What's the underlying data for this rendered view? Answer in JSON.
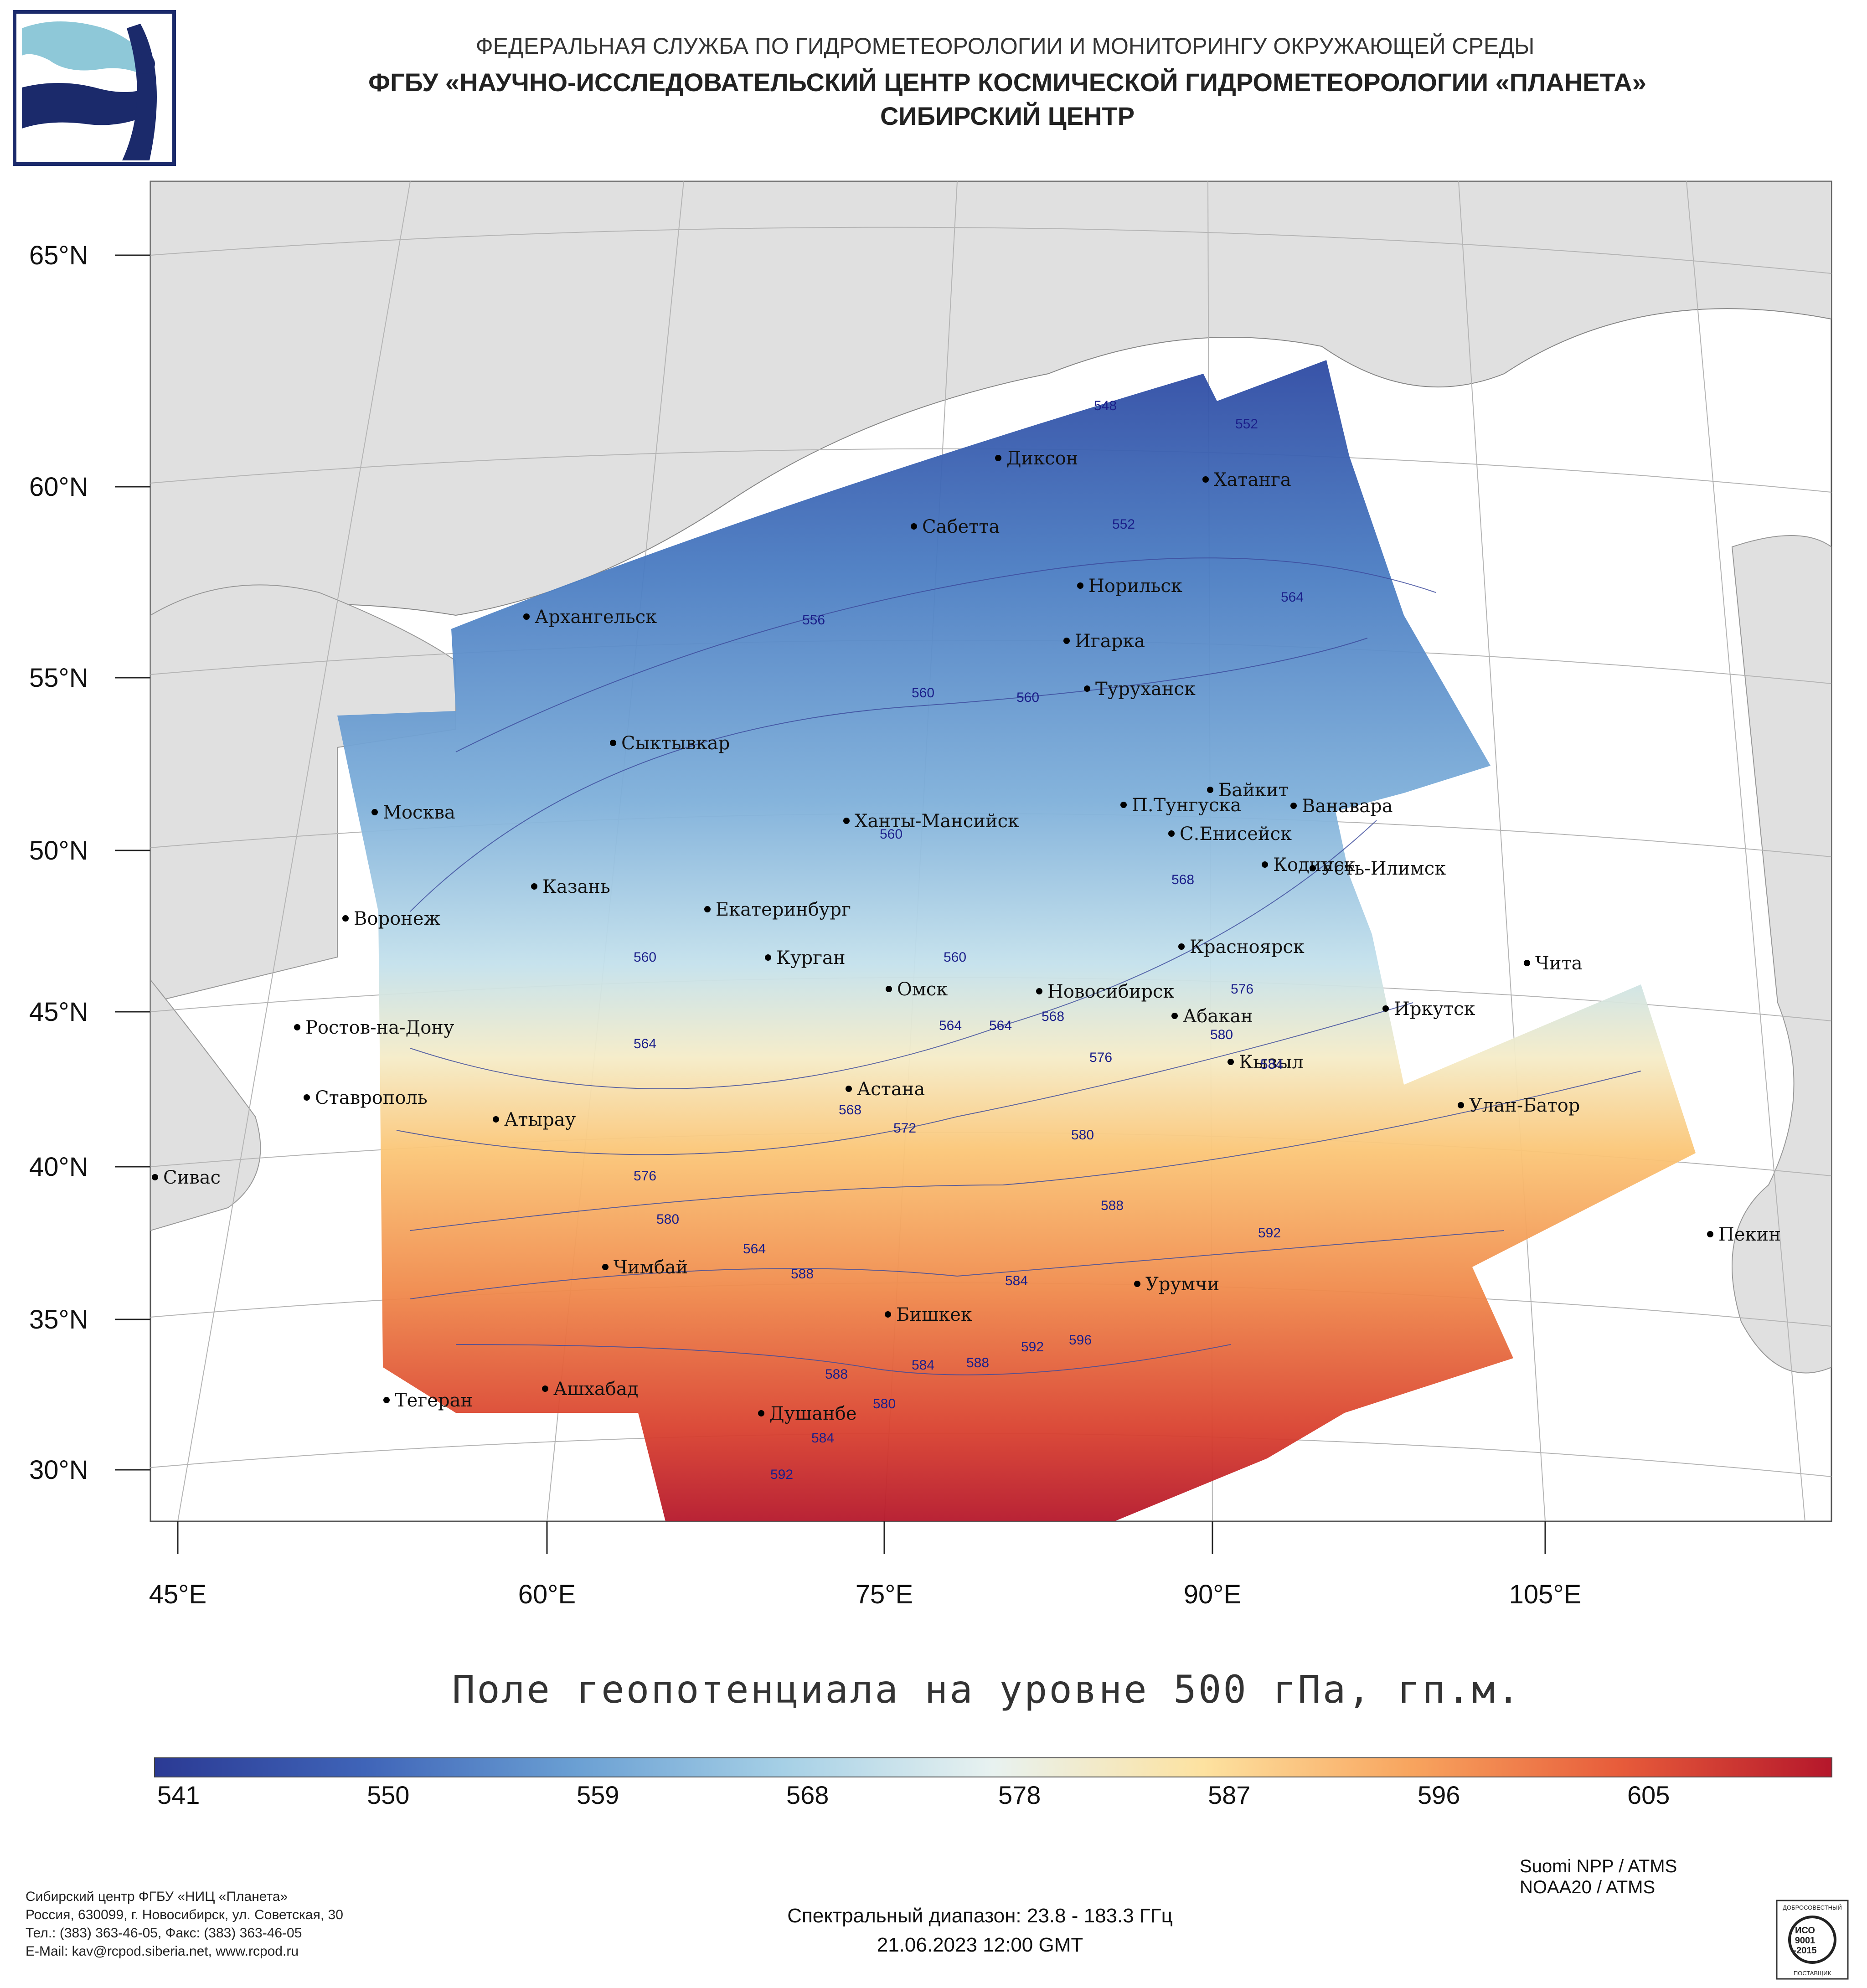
{
  "header": {
    "line1": "ФЕДЕРАЛЬНАЯ СЛУЖБА ПО ГИДРОМЕТЕОРОЛОГИИ И МОНИТОРИНГУ ОКРУЖАЮЩЕЙ СРЕДЫ",
    "line2": "ФГБУ «НАУЧНО-ИССЛЕДОВАТЕЛЬСКИЙ ЦЕНТР КОСМИЧЕСКОЙ ГИДРОМЕТЕОРОЛОГИИ «ПЛАНЕТА»",
    "line3": "СИБИРСКИЙ ЦЕНТР"
  },
  "map": {
    "lat_labels": [
      "65°N",
      "60°N",
      "55°N",
      "50°N",
      "45°N",
      "40°N",
      "35°N",
      "30°N"
    ],
    "lon_labels": [
      "45°E",
      "60°E",
      "75°E",
      "90°E",
      "105°E"
    ],
    "cities": [
      {
        "name": "Диксон"
      },
      {
        "name": "Хатанга"
      },
      {
        "name": "Сабетта"
      },
      {
        "name": "Норильск"
      },
      {
        "name": "Архангельск"
      },
      {
        "name": "Игарка"
      },
      {
        "name": "Туруханск"
      },
      {
        "name": "Сыктывкар"
      },
      {
        "name": "Байкит"
      },
      {
        "name": "П.Тунгуска"
      },
      {
        "name": "Ванавара"
      },
      {
        "name": "Москва"
      },
      {
        "name": "Ханты-Мансийск"
      },
      {
        "name": "С.Енисейск"
      },
      {
        "name": "Кодинск"
      },
      {
        "name": "Усть-Илимск"
      },
      {
        "name": "Казань"
      },
      {
        "name": "Екатеринбург"
      },
      {
        "name": "Воронеж"
      },
      {
        "name": "Красноярск"
      },
      {
        "name": "Курган"
      },
      {
        "name": "Чита"
      },
      {
        "name": "Омск"
      },
      {
        "name": "Новосибирск"
      },
      {
        "name": "Иркутск"
      },
      {
        "name": "Абакан"
      },
      {
        "name": "Ростов-на-Дону"
      },
      {
        "name": "Кызыл"
      },
      {
        "name": "Астана"
      },
      {
        "name": "Ставрополь"
      },
      {
        "name": "Улан-Батор"
      },
      {
        "name": "Атырау"
      },
      {
        "name": "Сивас"
      },
      {
        "name": "Пекин"
      },
      {
        "name": "Чимбай"
      },
      {
        "name": "Урумчи"
      },
      {
        "name": "Бишкек"
      },
      {
        "name": "Тегеран"
      },
      {
        "name": "Ашхабад"
      },
      {
        "name": "Душанбе"
      }
    ],
    "isolines": [
      "548",
      "552",
      "552",
      "556",
      "560",
      "560",
      "564",
      "560",
      "568",
      "560",
      "560",
      "564",
      "564",
      "564",
      "568",
      "576",
      "576",
      "580",
      "568",
      "572",
      "580",
      "576",
      "580",
      "564",
      "588",
      "588",
      "592",
      "584",
      "584",
      "588",
      "592",
      "596",
      "588",
      "580",
      "584",
      "592",
      "584"
    ]
  },
  "map_title": "Поле геопотенциала на уровне 500 гПа, гп.м.",
  "colorbar": {
    "ticks": [
      "541",
      "550",
      "559",
      "568",
      "578",
      "587",
      "596",
      "605"
    ],
    "colors": [
      "#2b3a94",
      "#3f64b8",
      "#6a9fd3",
      "#a6d0e6",
      "#e8f2f0",
      "#fde2a0",
      "#f8a45e",
      "#e75b3a",
      "#b5172b"
    ]
  },
  "footer": {
    "left_lines": [
      "Сибирский центр ФГБУ «НИЦ «Планета»",
      "Россия, 630099, г. Новосибирск, ул. Советская, 30",
      "Тел.: (383) 363-46-05, Факс: (383) 363-46-05",
      "E-Mail: kav@rcpod.siberia.net, www.rcpod.ru"
    ],
    "spectral": "Спектральный диапазон: 23.8 - 183.3 ГГц",
    "datetime": "21.06.2023 12:00 GMT",
    "satellites": [
      "Suomi NPP / ATMS",
      "NOAA20 / ATMS"
    ],
    "iso_badge": [
      "ДОБРОСОВЕСТНЫЙ",
      "ИСО",
      "9001",
      "-2015",
      "ПОСТАВЩИК"
    ]
  }
}
